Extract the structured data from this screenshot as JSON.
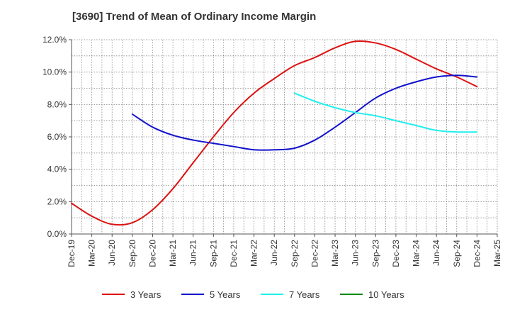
{
  "chart_data": {
    "type": "line",
    "title": "[3690]  Trend of Mean of Ordinary Income Margin",
    "xlabel": "",
    "ylabel": "",
    "categories": [
      "Dec-19",
      "Mar-20",
      "Jun-20",
      "Sep-20",
      "Dec-20",
      "Mar-21",
      "Jun-21",
      "Sep-21",
      "Dec-21",
      "Mar-22",
      "Jun-22",
      "Sep-22",
      "Dec-22",
      "Mar-23",
      "Jun-23",
      "Sep-23",
      "Dec-23",
      "Mar-24",
      "Jun-24",
      "Sep-24",
      "Dec-24",
      "Mar-25"
    ],
    "ylim": [
      0,
      12
    ],
    "yticks": [
      "0.0%",
      "2.0%",
      "4.0%",
      "6.0%",
      "8.0%",
      "10.0%",
      "12.0%"
    ],
    "grid": true,
    "legend_position": "bottom",
    "series": [
      {
        "name": "3 Years",
        "color": "#dd1111",
        "values": [
          1.9,
          1.1,
          0.6,
          0.7,
          1.5,
          2.8,
          4.4,
          6.0,
          7.5,
          8.7,
          9.6,
          10.4,
          10.9,
          11.5,
          11.9,
          11.8,
          11.4,
          10.8,
          10.2,
          9.7,
          9.1,
          null
        ]
      },
      {
        "name": "5 Years",
        "color": "#1111cc",
        "values": [
          null,
          null,
          null,
          7.4,
          6.6,
          6.1,
          5.8,
          5.6,
          5.4,
          5.2,
          5.2,
          5.3,
          5.8,
          6.6,
          7.5,
          8.4,
          9.0,
          9.4,
          9.7,
          9.8,
          9.7,
          null
        ]
      },
      {
        "name": "7 Years",
        "color": "#22eeee",
        "values": [
          null,
          null,
          null,
          null,
          null,
          null,
          null,
          null,
          null,
          null,
          null,
          8.7,
          8.2,
          7.8,
          7.5,
          7.3,
          7.0,
          6.7,
          6.4,
          6.3,
          6.3,
          null
        ]
      },
      {
        "name": "10 Years",
        "color": "#118811",
        "values": [
          null,
          null,
          null,
          null,
          null,
          null,
          null,
          null,
          null,
          null,
          null,
          null,
          null,
          null,
          null,
          null,
          null,
          null,
          null,
          null,
          null,
          null
        ]
      }
    ]
  }
}
